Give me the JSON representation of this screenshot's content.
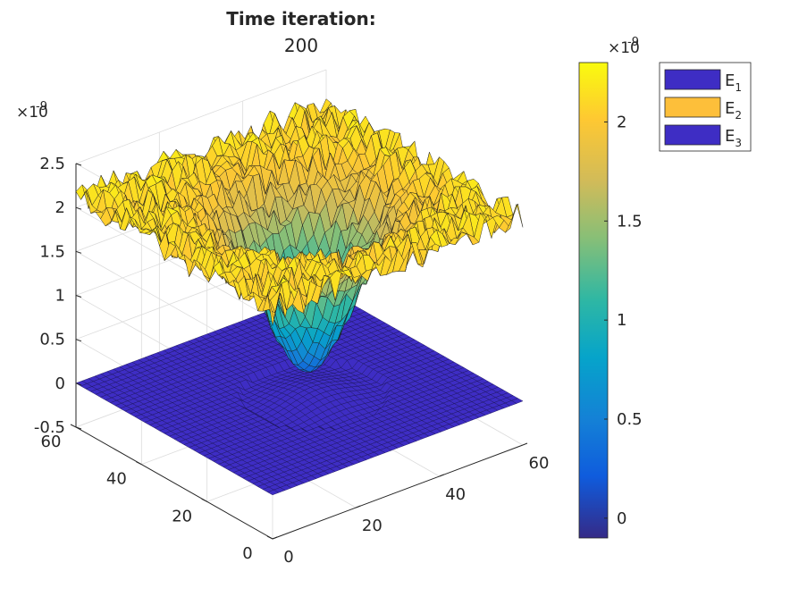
{
  "chart_data": {
    "type": "surface3d",
    "title_line1": "Time iteration:",
    "title_line2": "200",
    "x_ticks": [
      0,
      20,
      40,
      60
    ],
    "y_ticks": [
      0,
      20,
      40,
      60
    ],
    "z_ticks": [
      -0.5,
      0,
      0.5,
      1,
      1.5,
      2,
      2.5
    ],
    "z_tick_labels": [
      "-0.5",
      "0",
      "0.5",
      "1",
      "1.5",
      "2",
      "2.5"
    ],
    "z_exponent_base": "×10",
    "z_exponent_power": "-9",
    "xlim": [
      0,
      60
    ],
    "ylim": [
      0,
      60
    ],
    "zlim": [
      -0.5,
      2.5
    ],
    "colorbar": {
      "ticks": [
        0,
        0.5,
        1,
        1.5,
        2
      ],
      "tick_labels": [
        "0",
        "0.5",
        "1",
        "1.5",
        "2"
      ],
      "range": [
        -0.1,
        2.3
      ],
      "exponent_base": "×10",
      "exponent_power": "-9"
    },
    "legend": [
      {
        "base": "E",
        "sub": "1",
        "color": "#3e2dc4"
      },
      {
        "base": "E",
        "sub": "2",
        "color": "#fdbf3a"
      },
      {
        "base": "E",
        "sub": "3",
        "color": "#3e2dc4"
      }
    ],
    "series": [
      {
        "name": "E1",
        "description": "flat sheet near 0",
        "level": 0
      },
      {
        "name": "E2",
        "description": "rough plateau ~2.1 with central well to ~0.2",
        "plateau": 2.1,
        "well_min": 0.2
      },
      {
        "name": "E3",
        "description": "flat sheet near 0",
        "level": 0
      }
    ]
  }
}
